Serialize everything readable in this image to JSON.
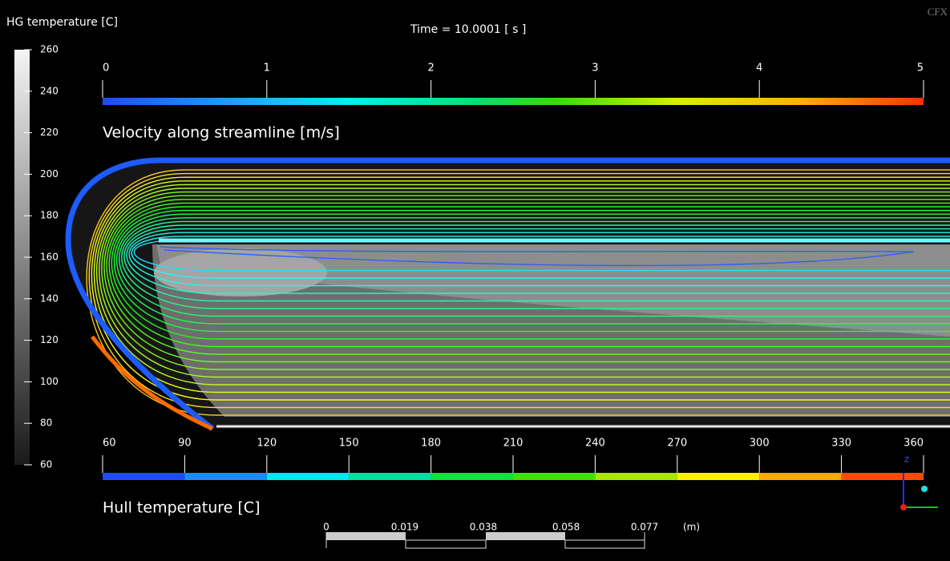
{
  "time_label": "Time = 10.0001 [ s ]",
  "watermark": "CFX",
  "hg_legend": {
    "title": "HG temperature [C]",
    "ticks": [
      260,
      240,
      220,
      200,
      180,
      160,
      140,
      120,
      100,
      80,
      60
    ]
  },
  "velocity_legend": {
    "title": "Velocity along streamline [m/s]",
    "ticks": [
      0,
      1,
      2,
      3,
      4,
      5
    ]
  },
  "hull_legend": {
    "title": "Hull temperature [C]",
    "ticks": [
      60,
      90,
      120,
      150,
      180,
      210,
      240,
      270,
      300,
      330,
      360
    ]
  },
  "scale_bar": {
    "ticks": [
      0,
      0.019,
      0.038,
      0.058,
      0.077
    ],
    "unit": "(m)"
  },
  "triad": {
    "z_label": "Z"
  }
}
